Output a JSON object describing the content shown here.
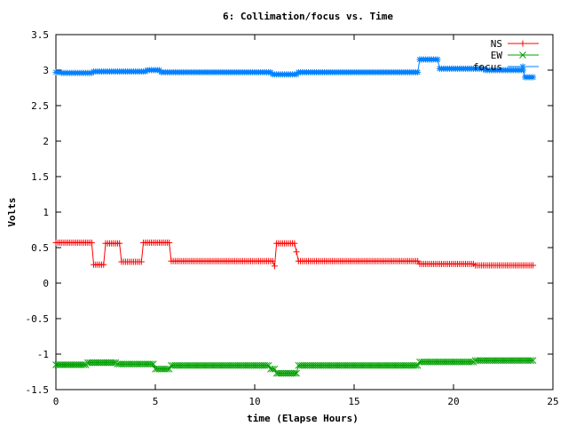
{
  "chart_data": {
    "type": "line",
    "title": "6: Collimation/focus vs. Time",
    "xlabel": "time (Elapse Hours)",
    "ylabel": "Volts",
    "xlim": [
      0,
      25
    ],
    "ylim": [
      -1.5,
      3.5
    ],
    "xticks": [
      0,
      5,
      10,
      15,
      20,
      25
    ],
    "xtick_labels": [
      "0",
      "5",
      "10",
      "15",
      "20",
      "25"
    ],
    "yticks": [
      -1.5,
      -1,
      -0.5,
      0,
      0.5,
      1,
      1.5,
      2,
      2.5,
      3,
      3.5
    ],
    "ytick_labels": [
      "-1.5",
      "-1",
      "-0.5",
      "0",
      "0.5",
      "1",
      "1.5",
      "2",
      "2.5",
      "3",
      "3.5"
    ],
    "grid": false,
    "legend_position": "top-right",
    "x_end": 24,
    "sample_step": 0.1,
    "series": [
      {
        "name": "NS",
        "color": "#ff0000",
        "marker": "plus",
        "segments": [
          {
            "from": 0,
            "to": 1.8,
            "value": 0.57
          },
          {
            "from": 1.9,
            "to": 2.4,
            "value": 0.26
          },
          {
            "from": 2.5,
            "to": 3.2,
            "value": 0.56
          },
          {
            "from": 3.3,
            "to": 4.3,
            "value": 0.3
          },
          {
            "from": 4.4,
            "to": 5.7,
            "value": 0.57
          },
          {
            "from": 5.8,
            "to": 10.9,
            "value": 0.31
          },
          {
            "from": 11.0,
            "to": 11.0,
            "value": 0.24
          },
          {
            "from": 11.1,
            "to": 12.0,
            "value": 0.56
          },
          {
            "from": 12.1,
            "to": 12.1,
            "value": 0.44
          },
          {
            "from": 12.2,
            "to": 18.2,
            "value": 0.31
          },
          {
            "from": 18.3,
            "to": 21.0,
            "value": 0.27
          },
          {
            "from": 21.1,
            "to": 24.0,
            "value": 0.25
          }
        ]
      },
      {
        "name": "EW",
        "color": "#00a000",
        "marker": "cross",
        "segments": [
          {
            "from": 0,
            "to": 1.5,
            "value": -1.15
          },
          {
            "from": 1.6,
            "to": 3.0,
            "value": -1.12
          },
          {
            "from": 3.1,
            "to": 4.9,
            "value": -1.14
          },
          {
            "from": 5.0,
            "to": 5.7,
            "value": -1.21
          },
          {
            "from": 5.8,
            "to": 10.7,
            "value": -1.16
          },
          {
            "from": 10.8,
            "to": 11.0,
            "value": -1.21
          },
          {
            "from": 11.1,
            "to": 12.1,
            "value": -1.27
          },
          {
            "from": 12.2,
            "to": 18.2,
            "value": -1.16
          },
          {
            "from": 18.3,
            "to": 21.0,
            "value": -1.11
          },
          {
            "from": 21.1,
            "to": 24.0,
            "value": -1.09
          }
        ]
      },
      {
        "name": "focus",
        "color": "#0080ff",
        "marker": "star",
        "segments": [
          {
            "from": 0,
            "to": 0.2,
            "value": 2.97
          },
          {
            "from": 0.3,
            "to": 1.8,
            "value": 2.96
          },
          {
            "from": 1.9,
            "to": 4.5,
            "value": 2.98
          },
          {
            "from": 4.6,
            "to": 5.2,
            "value": 3.0
          },
          {
            "from": 5.3,
            "to": 10.8,
            "value": 2.97
          },
          {
            "from": 10.9,
            "to": 12.1,
            "value": 2.94
          },
          {
            "from": 12.2,
            "to": 18.2,
            "value": 2.97
          },
          {
            "from": 18.3,
            "to": 19.2,
            "value": 3.15
          },
          {
            "from": 19.3,
            "to": 21.5,
            "value": 3.02
          },
          {
            "from": 21.6,
            "to": 23.5,
            "value": 3.0
          },
          {
            "from": 23.6,
            "to": 24.0,
            "value": 2.9
          }
        ]
      }
    ]
  }
}
